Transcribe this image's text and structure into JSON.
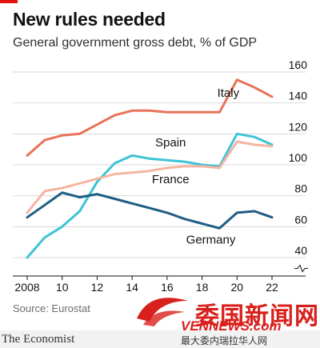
{
  "header": {
    "title": "New rules needed",
    "subtitle": "General government gross debt, % of GDP"
  },
  "footer": {
    "source": "Source: Eurostat",
    "brand": "The Economist"
  },
  "watermark": {
    "text": "委国新闻网",
    "url": "VENNEWS.com",
    "tagline": "最大委内瑞拉华人网"
  },
  "colors": {
    "Italy": "#e87358",
    "Spain": "#3ec4d4",
    "France": "#f5b5a0",
    "Germany": "#1f5c84",
    "accent": "#e3120b"
  },
  "chart_data": {
    "type": "line",
    "x": [
      2008,
      2009,
      2010,
      2011,
      2012,
      2013,
      2014,
      2015,
      2016,
      2017,
      2018,
      2019,
      2020,
      2021,
      2022
    ],
    "x_tick_values": [
      2008,
      2010,
      2012,
      2014,
      2016,
      2018,
      2020,
      2022
    ],
    "x_tick_labels": [
      "2008",
      "10",
      "12",
      "14",
      "16",
      "18",
      "20",
      "22"
    ],
    "y_ticks": [
      40,
      60,
      80,
      100,
      120,
      140,
      160
    ],
    "ylim": [
      30,
      165
    ],
    "xlim": [
      2008,
      2022
    ],
    "grid": true,
    "y_axis_break": true,
    "series": [
      {
        "name": "Italy",
        "values": [
          106,
          116,
          119,
          120,
          126,
          132,
          135,
          135,
          134,
          134,
          134,
          134,
          155,
          150,
          144
        ]
      },
      {
        "name": "Spain",
        "values": [
          40,
          53,
          60,
          70,
          89,
          101,
          106,
          104,
          103,
          102,
          100,
          99,
          120,
          118,
          113
        ]
      },
      {
        "name": "France",
        "values": [
          69,
          83,
          85,
          88,
          91,
          94,
          95,
          96,
          98,
          99,
          99,
          98,
          115,
          113,
          112
        ]
      },
      {
        "name": "Germany",
        "values": [
          66,
          74,
          82,
          79,
          81,
          78,
          75,
          72,
          69,
          65,
          62,
          59,
          69,
          70,
          66
        ]
      }
    ]
  }
}
